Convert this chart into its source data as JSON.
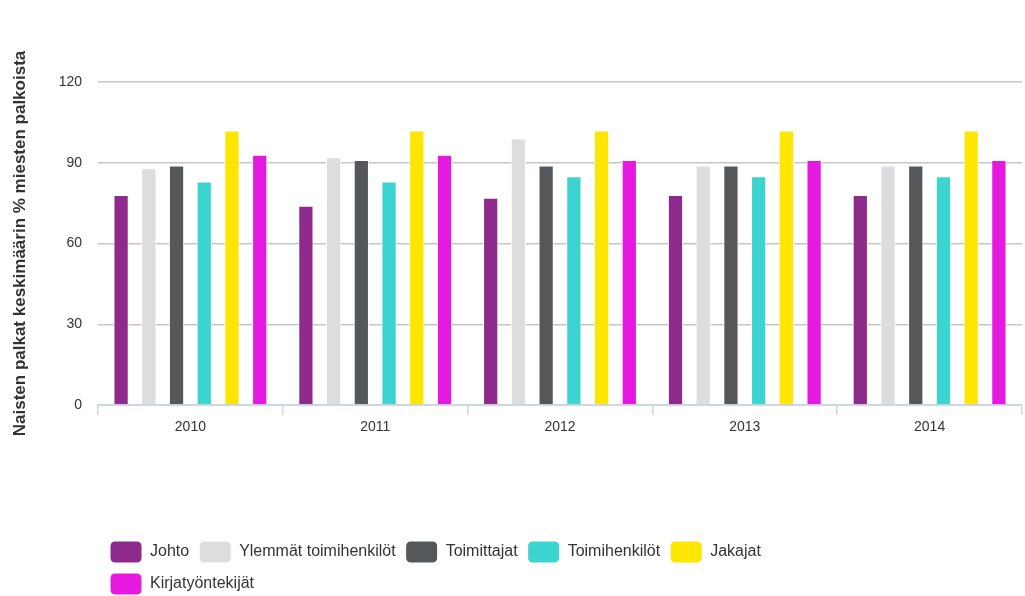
{
  "chart_data": {
    "type": "bar",
    "ylabel": "Naisten palkat keskimäärin % miesten palkoista",
    "categories": [
      "2010",
      "2011",
      "2012",
      "2013",
      "2014"
    ],
    "series": [
      {
        "name": "Johto",
        "color": "#8e2a8b",
        "values": [
          78,
          74,
          77,
          78,
          78
        ]
      },
      {
        "name": "Ylemmät toimihenkilöt",
        "color": "#dcdddf",
        "values": [
          88,
          92,
          99,
          89,
          89
        ]
      },
      {
        "name": "Toimittajat",
        "color": "#55585b",
        "values": [
          89,
          91,
          89,
          89,
          89
        ]
      },
      {
        "name": "Toimihenkilöt",
        "color": "#3cd4d0",
        "values": [
          83,
          83,
          85,
          85,
          85
        ]
      },
      {
        "name": "Jakajat",
        "color": "#ffe600",
        "values": [
          102,
          102,
          102,
          102,
          102
        ]
      },
      {
        "name": "Kirjatyöntekijät",
        "color": "#e619e0",
        "values": [
          93,
          93,
          91,
          91,
          91
        ]
      }
    ],
    "ylim": [
      0,
      120
    ],
    "yticks": [
      0,
      30,
      60,
      90,
      120
    ],
    "grid": "y",
    "legend": "bottom"
  }
}
